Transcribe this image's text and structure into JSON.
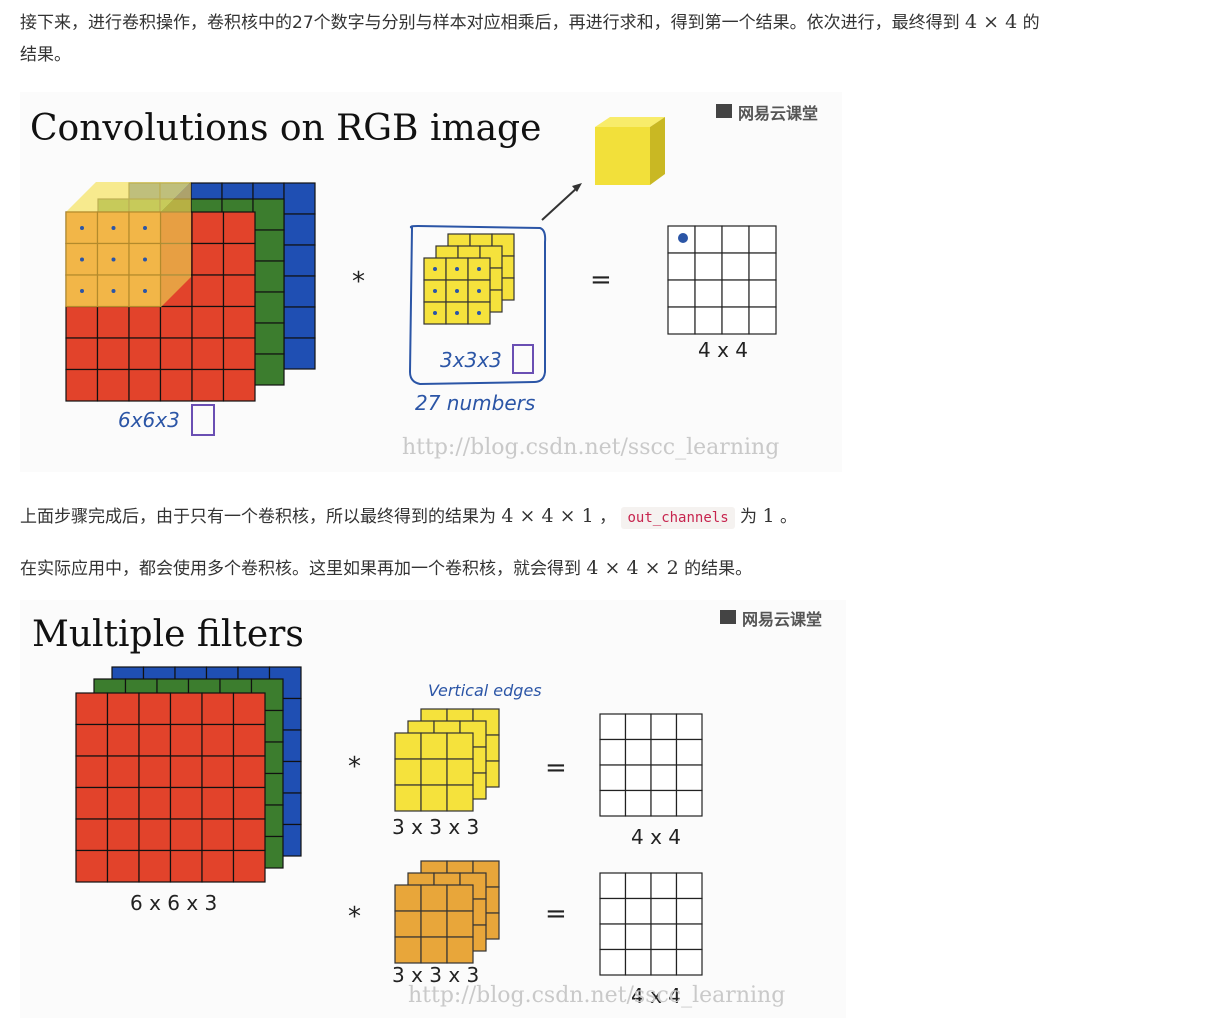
{
  "paragraph1": {
    "text_a": "接下来，进行卷积操作，卷积核中的27个数字与分别与样本对应相乘后，再进行求和，得到第一个结果。依次进行，最终得到",
    "math": "4 × 4",
    "text_b": "的",
    "text_c": "结果。"
  },
  "figure1": {
    "title": "Convolutions on RGB image",
    "logo": "网易云课堂",
    "input_dim": "6x6x3",
    "filter_dim": "3x3x3",
    "filter_note": "27 numbers",
    "output_dim": "4 x 4",
    "operator_mul": "*",
    "operator_eq": "=",
    "watermark": "http://blog.csdn.net/sscc_learning"
  },
  "paragraph2": {
    "text_a": "上面步骤完成后，由于只有一个卷积核，所以最终得到的结果为",
    "math": "4 × 4 × 1",
    "text_b": "，",
    "code": "out_channels",
    "text_c": "为",
    "math2": "1",
    "text_d": "。"
  },
  "paragraph3": {
    "text_a": "在实际应用中，都会使用多个卷积核。这里如果再加一个卷积核，就会得到",
    "math": "4 × 4 × 2",
    "text_b": "的结果。"
  },
  "figure2": {
    "title": "Multiple filters",
    "logo": "网易云课堂",
    "input_dim": "6 x 6 x 3",
    "filter1_dim": "3 x 3 x 3",
    "filter2_dim": "3 x 3 x 3",
    "filter1_note": "Vertical edges",
    "output1_dim": "4 x 4",
    "output2_dim": "4 x 4",
    "operator_mul": "*",
    "operator_eq": "=",
    "watermark": "http://blog.csdn.net/sscc_learning"
  },
  "colors": {
    "red": "#e2432b",
    "green": "#3c7d2e",
    "blue": "#1f4fb3",
    "yellow": "#f5e23c",
    "orange": "#e8a63a",
    "highlight": "#f2b648"
  }
}
